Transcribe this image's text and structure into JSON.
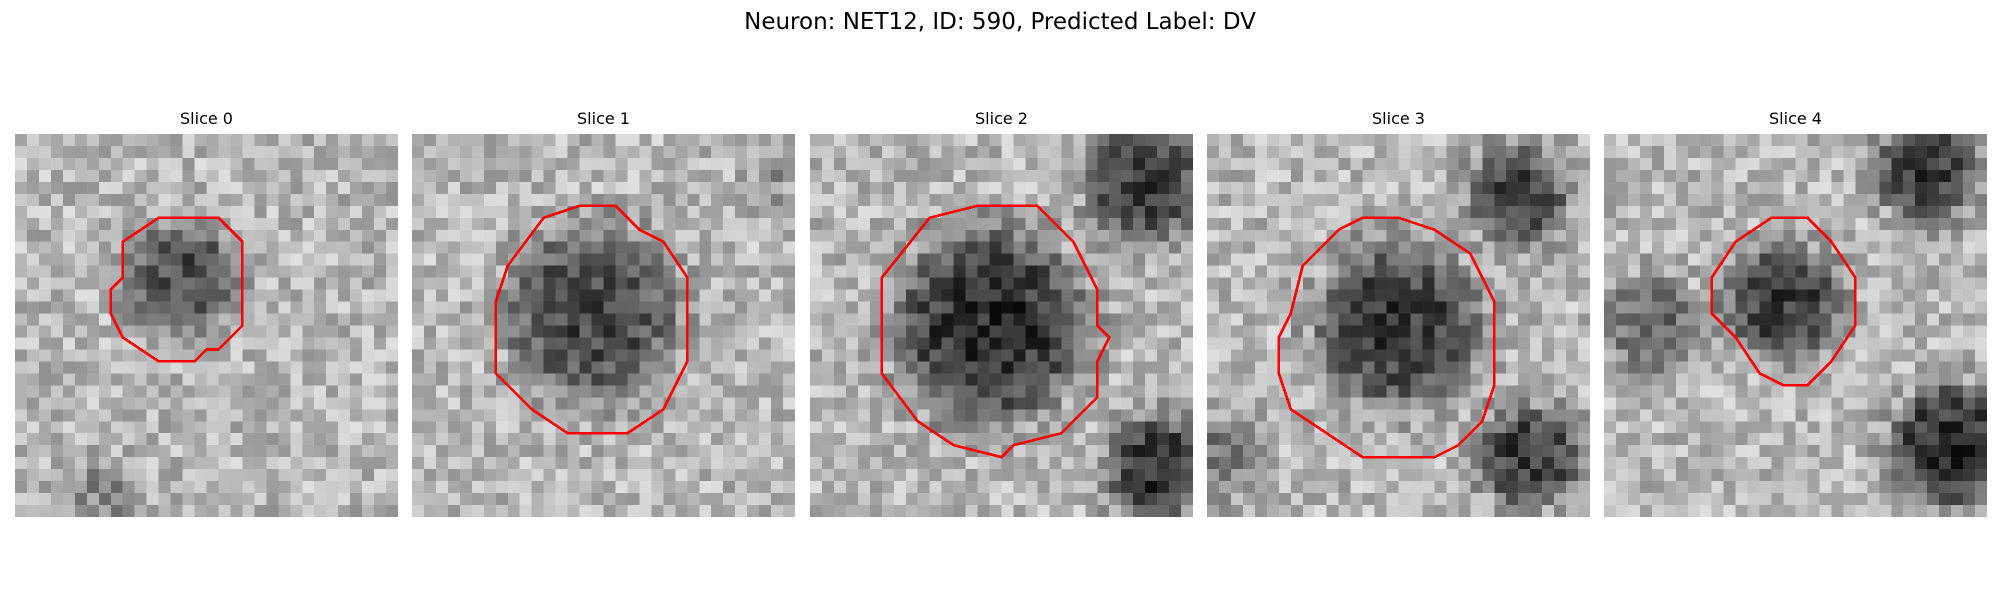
{
  "figure": {
    "title": "Neuron: NET12, ID: 590, Predicted Label: DV"
  },
  "panels": [
    {
      "title": "Slice 0"
    },
    {
      "title": "Slice 1"
    },
    {
      "title": "Slice 2"
    },
    {
      "title": "Slice 3"
    },
    {
      "title": "Slice 4"
    }
  ],
  "colors": {
    "contour": "#ff0000",
    "background": "#ffffff"
  }
}
